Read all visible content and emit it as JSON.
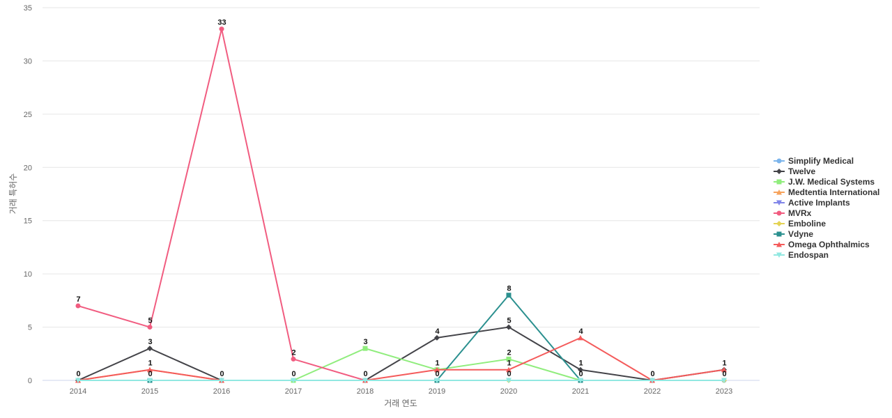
{
  "chart_data": {
    "type": "line",
    "x": [
      "2014",
      "2015",
      "2016",
      "2017",
      "2018",
      "2019",
      "2020",
      "2021",
      "2022",
      "2023"
    ],
    "xlabel": "거래 연도",
    "ylabel": "거래 특허수",
    "ylim": [
      0,
      35
    ],
    "yticks": [
      0,
      5,
      10,
      15,
      20,
      25,
      30,
      35
    ],
    "grid": true,
    "legend_position": "right",
    "series": [
      {
        "name": "Simplify Medical",
        "color": "#7cb5ec",
        "marker": "circle",
        "values": [
          null,
          null,
          null,
          null,
          null,
          null,
          null,
          null,
          0,
          0
        ]
      },
      {
        "name": "Twelve",
        "color": "#434348",
        "marker": "diamond",
        "values": [
          0,
          3,
          0,
          null,
          0,
          4,
          5,
          1,
          0,
          1
        ]
      },
      {
        "name": "J.W. Medical Systems",
        "color": "#90ed7d",
        "marker": "square",
        "values": [
          null,
          null,
          null,
          0,
          3,
          1,
          2,
          0,
          null,
          null
        ]
      },
      {
        "name": "Medtentia International",
        "color": "#f7a35c",
        "marker": "triangle",
        "values": [
          0,
          1,
          0,
          null,
          null,
          null,
          null,
          null,
          null,
          null
        ]
      },
      {
        "name": "Active Implants",
        "color": "#8085e9",
        "marker": "triangle-down",
        "values": [
          null,
          null,
          null,
          null,
          null,
          null,
          null,
          null,
          null,
          null
        ]
      },
      {
        "name": "MVRx",
        "color": "#f15c80",
        "marker": "circle",
        "values": [
          7,
          5,
          33,
          2,
          0,
          null,
          null,
          null,
          null,
          null
        ]
      },
      {
        "name": "Emboline",
        "color": "#e4d354",
        "marker": "diamond",
        "values": [
          null,
          null,
          null,
          null,
          null,
          null,
          0,
          null,
          null,
          0
        ]
      },
      {
        "name": "Vdyne",
        "color": "#2b908f",
        "marker": "square",
        "values": [
          null,
          0,
          null,
          null,
          null,
          0,
          8,
          0,
          null,
          null
        ]
      },
      {
        "name": "Omega Ophthalmics",
        "color": "#f45b5b",
        "marker": "triangle",
        "values": [
          0,
          1,
          0,
          null,
          0,
          1,
          1,
          4,
          0,
          1
        ]
      },
      {
        "name": "Endospan",
        "color": "#91e8e1",
        "marker": "triangle-down",
        "values": [
          0,
          0,
          0,
          0,
          0,
          0,
          0,
          0,
          0,
          0
        ]
      }
    ],
    "data_labels": [
      {
        "series": "MVRx",
        "x": "2014",
        "text": "7"
      },
      {
        "series": "MVRx",
        "x": "2015",
        "text": "5"
      },
      {
        "series": "MVRx",
        "x": "2016",
        "text": "33"
      },
      {
        "series": "MVRx",
        "x": "2017",
        "text": "2"
      },
      {
        "series": "Twelve",
        "x": "2014",
        "text": "0"
      },
      {
        "series": "Twelve",
        "x": "2015",
        "text": "3"
      },
      {
        "series": "Medtentia International",
        "x": "2015",
        "text": "1"
      },
      {
        "series": "Vdyne",
        "x": "2015",
        "text": "0"
      },
      {
        "series": "Twelve",
        "x": "2016",
        "text": "0"
      },
      {
        "series": "J.W. Medical Systems",
        "x": "2017",
        "text": "0"
      },
      {
        "series": "J.W. Medical Systems",
        "x": "2018",
        "text": "3"
      },
      {
        "series": "Twelve",
        "x": "2018",
        "text": "0"
      },
      {
        "series": "Twelve",
        "x": "2019",
        "text": "4"
      },
      {
        "series": "J.W. Medical Systems",
        "x": "2019",
        "text": "1"
      },
      {
        "series": "Vdyne",
        "x": "2019",
        "text": "0"
      },
      {
        "series": "Vdyne",
        "x": "2020",
        "text": "8"
      },
      {
        "series": "Twelve",
        "x": "2020",
        "text": "5"
      },
      {
        "series": "J.W. Medical Systems",
        "x": "2020",
        "text": "2"
      },
      {
        "series": "Omega Ophthalmics",
        "x": "2020",
        "text": "1"
      },
      {
        "series": "Emboline",
        "x": "2020",
        "text": "0"
      },
      {
        "series": "Omega Ophthalmics",
        "x": "2021",
        "text": "4"
      },
      {
        "series": "Twelve",
        "x": "2021",
        "text": "1"
      },
      {
        "series": "Vdyne",
        "x": "2021",
        "text": "0"
      },
      {
        "series": "Simplify Medical",
        "x": "2022",
        "text": "0"
      },
      {
        "series": "Twelve",
        "x": "2023",
        "text": "1"
      },
      {
        "series": "Emboline",
        "x": "2023",
        "text": "0"
      }
    ]
  }
}
